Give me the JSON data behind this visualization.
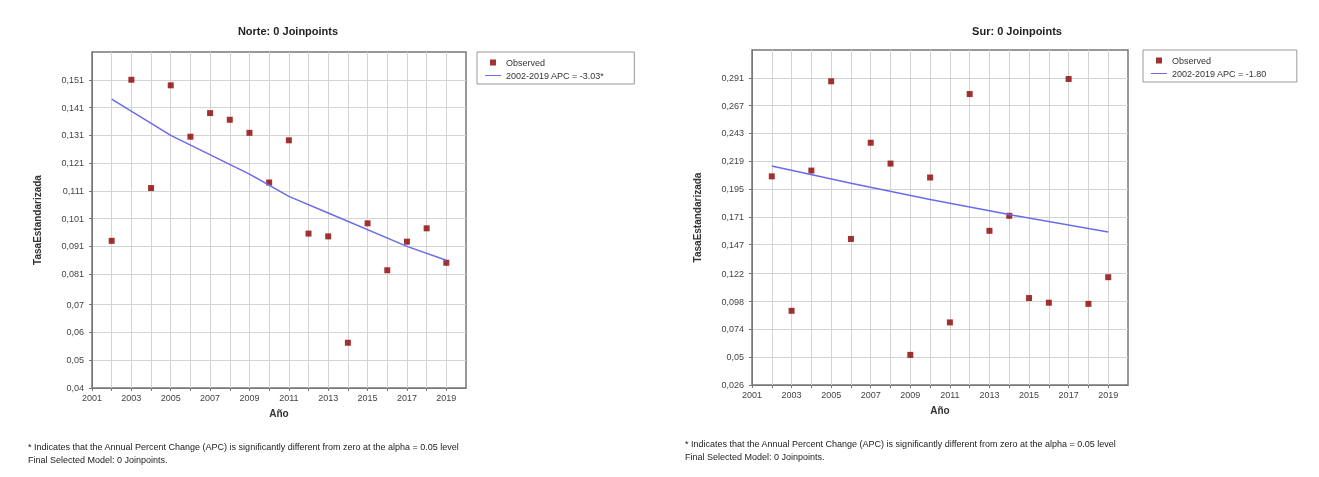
{
  "chart_data": [
    {
      "type": "scatter",
      "title": "Norte: 0 Joinpoints",
      "xlabel": "Año",
      "ylabel": "TasaEstandarizada",
      "x": [
        2002,
        2003,
        2004,
        2005,
        2006,
        2007,
        2008,
        2009,
        2010,
        2011,
        2012,
        2013,
        2014,
        2015,
        2016,
        2017,
        2018,
        2019
      ],
      "series": [
        {
          "name": "Observed",
          "type": "scatter",
          "color": "#8b0000",
          "marker": "square",
          "values": [
            0.093,
            0.151,
            0.112,
            0.149,
            0.1305,
            0.139,
            0.1366,
            0.1319,
            0.114,
            0.1292,
            0.0956,
            0.0946,
            0.0563,
            0.0993,
            0.0824,
            0.0927,
            0.0975,
            0.0851
          ]
        },
        {
          "name": "2002-2019 APC = -3.03*",
          "type": "line",
          "color": "#6b6bea",
          "marker": "none",
          "x": [
            2002,
            2005,
            2009,
            2011,
            2013,
            2017,
            2019
          ],
          "values": [
            0.144,
            0.131,
            0.117,
            0.109,
            0.103,
            0.091,
            0.086
          ]
        }
      ],
      "xlim": [
        2001,
        2020
      ],
      "xticks": [
        2001,
        {
          "value": 2002,
          "label": null
        },
        2003,
        {
          "value": 2004,
          "label": null
        },
        2005,
        {
          "value": 2006,
          "label": null
        },
        2007,
        {
          "value": 2008,
          "label": null
        },
        2009,
        {
          "value": 2010,
          "label": null
        },
        2011,
        {
          "value": 2012,
          "label": null
        },
        2013,
        {
          "value": 2014,
          "label": null
        },
        2015,
        {
          "value": 2016,
          "label": null
        },
        2017,
        {
          "value": 2018,
          "label": null
        },
        2019
      ],
      "ylim": [
        0.04,
        0.161
      ],
      "yticks": [
        {
          "value": 0.04,
          "label": "0,04"
        },
        {
          "value": 0.05,
          "label": "0,05"
        },
        {
          "value": 0.06,
          "label": "0,06"
        },
        {
          "value": 0.07,
          "label": "0,07"
        },
        {
          "value": 0.081,
          "label": "0,081"
        },
        {
          "value": 0.091,
          "label": "0,091"
        },
        {
          "value": 0.101,
          "label": "0,101"
        },
        {
          "value": 0.111,
          "label": "0,111"
        },
        {
          "value": 0.121,
          "label": "0,121"
        },
        {
          "value": 0.131,
          "label": "0,131"
        },
        {
          "value": 0.141,
          "label": "0,141"
        },
        {
          "value": 0.151,
          "label": "0,151"
        }
      ],
      "grid": true,
      "legend": "top right",
      "annotations": [
        "* Indicates that the Annual Percent Change (APC) is significantly different from zero at the alpha = 0.05 level",
        "Final Selected Model: 0 Joinpoints."
      ]
    },
    {
      "type": "scatter",
      "title": "Sur: 0 Joinpoints",
      "xlabel": "Año",
      "ylabel": "TasaEstandarizada",
      "x": [
        2002,
        2003,
        2004,
        2005,
        2006,
        2007,
        2008,
        2009,
        2010,
        2011,
        2012,
        2013,
        2014,
        2015,
        2016,
        2017,
        2018,
        2019
      ],
      "series": [
        {
          "name": "Observed",
          "type": "scatter",
          "color": "#8b0000",
          "marker": "square",
          "values": [
            0.206,
            0.09,
            0.211,
            0.288,
            0.152,
            0.235,
            0.217,
            0.052,
            0.205,
            0.08,
            0.277,
            0.159,
            0.172,
            0.101,
            0.097,
            0.29,
            0.096,
            0.119
          ]
        },
        {
          "name": "2002-2019 APC = -1.80",
          "type": "line",
          "color": "#6b6bea",
          "marker": "none",
          "x": [
            2002,
            2006,
            2010,
            2014,
            2019
          ],
          "values": [
            0.215,
            0.2,
            0.186,
            0.173,
            0.158
          ]
        }
      ],
      "xlim": [
        2001,
        2020
      ],
      "xticks": [
        2001,
        {
          "value": 2002,
          "label": null
        },
        2003,
        {
          "value": 2004,
          "label": null
        },
        2005,
        {
          "value": 2006,
          "label": null
        },
        2007,
        {
          "value": 2008,
          "label": null
        },
        2009,
        {
          "value": 2010,
          "label": null
        },
        2011,
        {
          "value": 2012,
          "label": null
        },
        2013,
        {
          "value": 2014,
          "label": null
        },
        2015,
        {
          "value": 2016,
          "label": null
        },
        2017,
        {
          "value": 2018,
          "label": null
        },
        2019
      ],
      "ylim": [
        0.026,
        0.315
      ],
      "yticks": [
        {
          "value": 0.026,
          "label": "0,026"
        },
        {
          "value": 0.05,
          "label": "0,05"
        },
        {
          "value": 0.074,
          "label": "0,074"
        },
        {
          "value": 0.098,
          "label": "0,098"
        },
        {
          "value": 0.122,
          "label": "0,122"
        },
        {
          "value": 0.147,
          "label": "0,147"
        },
        {
          "value": 0.171,
          "label": "0,171"
        },
        {
          "value": 0.195,
          "label": "0,195"
        },
        {
          "value": 0.219,
          "label": "0,219"
        },
        {
          "value": 0.243,
          "label": "0,243"
        },
        {
          "value": 0.267,
          "label": "0,267"
        },
        {
          "value": 0.291,
          "label": "0,291"
        }
      ],
      "grid": true,
      "legend": "top right",
      "annotations": [
        "* Indicates that the Annual Percent Change (APC) is significantly different from zero at the alpha = 0.05 level",
        "Final Selected Model: 0 Joinpoints."
      ]
    }
  ]
}
